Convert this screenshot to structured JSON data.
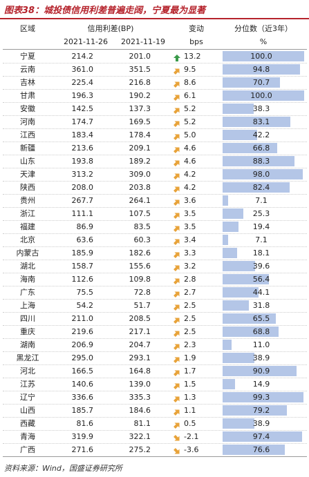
{
  "header": {
    "title": "图表38：城投债信用利差普遍走阔，宁夏最为显著"
  },
  "table": {
    "head1": [
      "区域",
      "信用利差(BP)",
      "变动",
      "分位数（近3年）"
    ],
    "head2": [
      "2021-11-26",
      "2021-11-19",
      "bps",
      "%"
    ],
    "rows": [
      [
        "宁夏",
        "214.2",
        "201.0",
        "13.2",
        "100.0"
      ],
      [
        "云南",
        "361.0",
        "351.5",
        "9.5",
        "94.8"
      ],
      [
        "吉林",
        "225.4",
        "216.8",
        "8.6",
        "70.7"
      ],
      [
        "甘肃",
        "196.3",
        "190.2",
        "6.1",
        "100.0"
      ],
      [
        "安徽",
        "142.5",
        "137.3",
        "5.2",
        "38.3"
      ],
      [
        "河南",
        "174.7",
        "169.5",
        "5.2",
        "83.1"
      ],
      [
        "江西",
        "183.4",
        "178.4",
        "5.0",
        "42.2"
      ],
      [
        "新疆",
        "213.6",
        "209.1",
        "4.6",
        "66.8"
      ],
      [
        "山东",
        "193.8",
        "189.2",
        "4.6",
        "88.3"
      ],
      [
        "天津",
        "313.2",
        "309.0",
        "4.2",
        "98.0"
      ],
      [
        "陕西",
        "208.0",
        "203.8",
        "4.2",
        "82.4"
      ],
      [
        "贵州",
        "267.7",
        "264.1",
        "3.6",
        "7.1"
      ],
      [
        "浙江",
        "111.1",
        "107.5",
        "3.5",
        "25.3"
      ],
      [
        "福建",
        "86.9",
        "83.5",
        "3.5",
        "19.4"
      ],
      [
        "北京",
        "63.6",
        "60.3",
        "3.4",
        "7.1"
      ],
      [
        "内蒙古",
        "185.9",
        "182.6",
        "3.3",
        "18.1"
      ],
      [
        "湖北",
        "158.7",
        "155.6",
        "3.2",
        "39.6"
      ],
      [
        "海南",
        "112.6",
        "109.8",
        "2.8",
        "56.4"
      ],
      [
        "广东",
        "75.5",
        "72.8",
        "2.7",
        "44.1"
      ],
      [
        "上海",
        "54.2",
        "51.7",
        "2.5",
        "31.8"
      ],
      [
        "四川",
        "211.0",
        "208.5",
        "2.5",
        "65.5"
      ],
      [
        "重庆",
        "219.6",
        "217.1",
        "2.5",
        "68.8"
      ],
      [
        "湖南",
        "206.9",
        "204.7",
        "2.3",
        "11.0"
      ],
      [
        "黑龙江",
        "295.0",
        "293.1",
        "1.9",
        "38.9"
      ],
      [
        "河北",
        "166.5",
        "164.8",
        "1.7",
        "90.9"
      ],
      [
        "江苏",
        "140.6",
        "139.0",
        "1.5",
        "14.9"
      ],
      [
        "辽宁",
        "336.6",
        "335.3",
        "1.3",
        "99.3"
      ],
      [
        "山西",
        "185.7",
        "184.6",
        "1.1",
        "79.2"
      ],
      [
        "西藏",
        "81.6",
        "81.1",
        "0.5",
        "38.9"
      ],
      [
        "青海",
        "319.9",
        "322.1",
        "-2.1",
        "97.4"
      ],
      [
        "广西",
        "271.6",
        "275.2",
        "-3.6",
        "76.6"
      ]
    ]
  },
  "source": "资料来源：Wind，国盛证券研究所"
}
